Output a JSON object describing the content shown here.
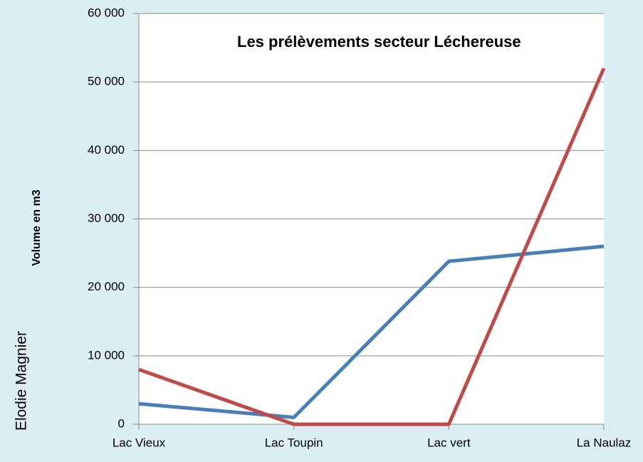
{
  "chart_data": {
    "type": "line",
    "title": "Les prélèvements secteur Léchereuse",
    "y_label": "Volume en m3",
    "annotations": [
      "Elodie Magnier"
    ],
    "categories": [
      "Lac Vieux",
      "Lac Toupin",
      "Lac vert",
      "La Naulaz"
    ],
    "series": [
      {
        "color": "#4a7ebb",
        "values": [
          3000,
          1000,
          23800,
          26000
        ]
      },
      {
        "color": "#be4b48",
        "values": [
          8000,
          0,
          0,
          52000
        ]
      }
    ],
    "ylim": [
      0,
      60000
    ],
    "yticks": [
      0,
      {
        "value": 10000,
        "label": "10 000"
      },
      {
        "value": 20000,
        "label": "20 000"
      },
      {
        "value": 30000,
        "label": "30 000"
      },
      {
        "value": 40000,
        "label": "40 000"
      },
      {
        "value": 50000,
        "label": "50 000"
      },
      {
        "value": 60000,
        "label": "60 000"
      }
    ],
    "grid": true
  }
}
